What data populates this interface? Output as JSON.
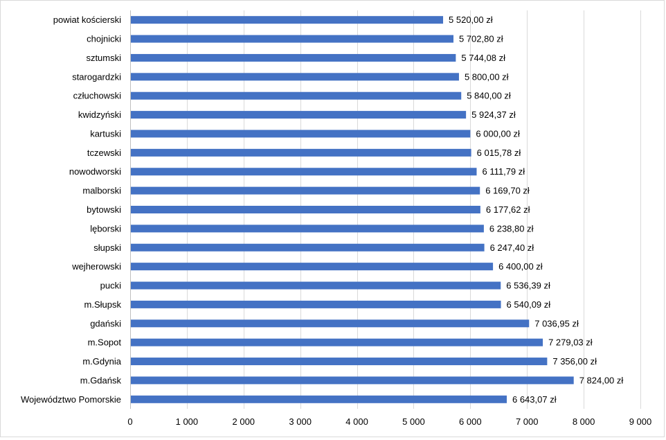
{
  "chart_data": {
    "type": "bar",
    "orientation": "horizontal",
    "title": "",
    "xlabel": "",
    "ylabel": "",
    "xlim": [
      0,
      9000
    ],
    "x_ticks": [
      0,
      1000,
      2000,
      3000,
      4000,
      5000,
      6000,
      7000,
      8000,
      9000
    ],
    "x_tick_labels": [
      "0",
      "1 000",
      "2 000",
      "3 000",
      "4 000",
      "5 000",
      "6 000",
      "7 000",
      "8 000",
      "9 000"
    ],
    "grid": "vertical",
    "legend": "none",
    "bar_color": "#4472c4",
    "categories": [
      "powiat kościerski",
      "chojnicki",
      "sztumski",
      "starogardzki",
      "człuchowski",
      "kwidzyński",
      "kartuski",
      "tczewski",
      "nowodworski",
      "malborski",
      "bytowski",
      "lęborski",
      "słupski",
      "wejherowski",
      "pucki",
      "m.Słupsk",
      "gdański",
      "m.Sopot",
      "m.Gdynia",
      "m.Gdańsk",
      "Województwo Pomorskie"
    ],
    "values": [
      5520.0,
      5702.8,
      5744.08,
      5800.0,
      5840.0,
      5924.37,
      6000.0,
      6015.78,
      6111.79,
      6169.7,
      6177.62,
      6238.8,
      6247.4,
      6400.0,
      6536.39,
      6540.09,
      7036.95,
      7279.03,
      7356.0,
      7824.0,
      6643.07
    ],
    "value_labels": [
      "5 520,00 zł",
      "5 702,80 zł",
      "5 744,08 zł",
      "5 800,00 zł",
      "5 840,00 zł",
      "5 924,37 zł",
      "6 000,00 zł",
      "6 015,78 zł",
      "6 111,79 zł",
      "6 169,70 zł",
      "6 177,62 zł",
      "6 238,80 zł",
      "6 247,40 zł",
      "6 400,00 zł",
      "6 536,39 zł",
      "6 540,09 zł",
      "7 036,95 zł",
      "7 279,03 zł",
      "7 356,00 zł",
      "7 824,00 zł",
      "6 643,07 zł"
    ]
  }
}
